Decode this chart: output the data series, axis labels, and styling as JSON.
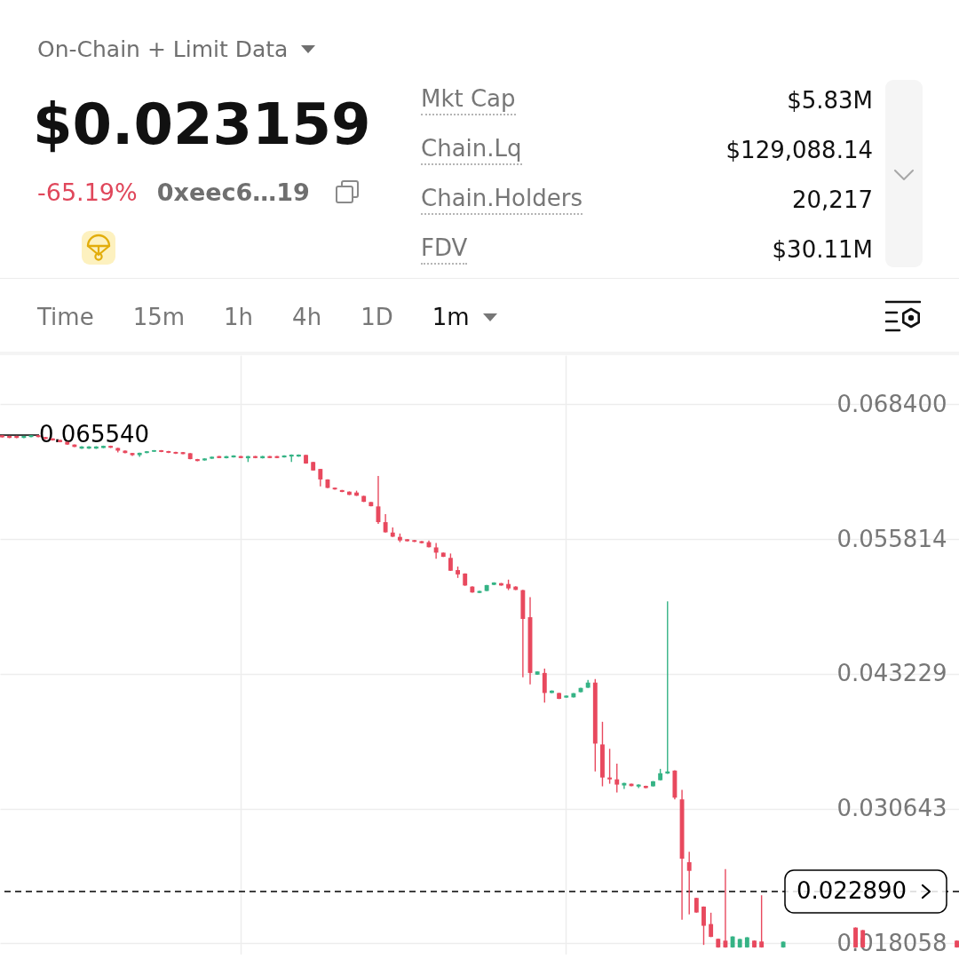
{
  "chart_data": [
    {
      "type": "other",
      "title": "On-Chain + Limit Data",
      "subtitle": "$0.023159",
      "annotations": [
        "-65.19%",
        "0xeec6…19",
        "Mkt Cap",
        "$5.83M",
        "Chain.Lq",
        "$129,088.14",
        "Chain.Holders",
        "20,217",
        "FDV",
        "$30.11M",
        "Time",
        "15m",
        "1h",
        "4h",
        "1D",
        "1m"
      ]
    },
    {
      "type": "candlestick",
      "categories": [
        null,
        null,
        null,
        null,
        null,
        null,
        null,
        null,
        null,
        null,
        null,
        null,
        null,
        null,
        null,
        null,
        null,
        null,
        null,
        null,
        null,
        null,
        null,
        null,
        null,
        null,
        null,
        null,
        null,
        null,
        null,
        null,
        null,
        null,
        null,
        null,
        null,
        null,
        null,
        null,
        null,
        null,
        null,
        null,
        null,
        null,
        null,
        null,
        null,
        null,
        null,
        null,
        null,
        null,
        null,
        null,
        null,
        null,
        null,
        null,
        null,
        null,
        null,
        null,
        null,
        null,
        null,
        null,
        null,
        null,
        null,
        null,
        null,
        null,
        null,
        null,
        null,
        null,
        null,
        null,
        null,
        null,
        null,
        null,
        null,
        null,
        null,
        null,
        null,
        null,
        null,
        null,
        null,
        null,
        null,
        null,
        null,
        null,
        null,
        null,
        null,
        null,
        null,
        null,
        null,
        null,
        null,
        null,
        null,
        null,
        null,
        null,
        null,
        null,
        null,
        null,
        null,
        null,
        null,
        null,
        null,
        null,
        null,
        null,
        null,
        null,
        null,
        null,
        null,
        null,
        null,
        null,
        null
      ],
      "ohlc": [
        [
          0.06552,
          0.06554,
          0.0653,
          0.06533
        ],
        [
          0.06545,
          0.06547,
          0.06525,
          0.06527
        ],
        [
          0.06545,
          0.06547,
          0.06525,
          0.06527
        ],
        [
          0.06527,
          0.06547,
          0.06525,
          0.06545
        ],
        [
          0.06535,
          0.06554,
          0.06533,
          0.06552
        ],
        [
          0.06552,
          0.06554,
          0.06533,
          0.06535
        ],
        [
          0.06535,
          0.06537,
          0.06515,
          0.06517
        ],
        [
          0.06522,
          0.06524,
          0.06502,
          0.06504
        ],
        [
          0.06508,
          0.0651,
          0.06486,
          0.06488
        ],
        [
          0.0649,
          0.06492,
          0.06463,
          0.06465
        ],
        [
          0.06465,
          0.06467,
          0.06441,
          0.06443
        ],
        [
          0.06427,
          0.06449,
          0.06425,
          0.06447
        ],
        [
          0.06427,
          0.06449,
          0.06425,
          0.06447
        ],
        [
          0.06427,
          0.06449,
          0.06425,
          0.06447
        ],
        [
          0.06433,
          0.06455,
          0.06431,
          0.06453
        ],
        [
          0.06453,
          0.06455,
          0.06433,
          0.06435
        ],
        [
          0.06433,
          0.06435,
          0.06392,
          0.06408
        ],
        [
          0.06408,
          0.0641,
          0.06384,
          0.06386
        ],
        [
          0.06386,
          0.06388,
          0.06359,
          0.06366
        ],
        [
          0.06366,
          0.0639,
          0.06351,
          0.06388
        ],
        [
          0.06386,
          0.06404,
          0.06384,
          0.06402
        ],
        [
          0.06398,
          0.06414,
          0.06396,
          0.06412
        ],
        [
          0.06412,
          0.06414,
          0.06394,
          0.06396
        ],
        [
          0.06404,
          0.06406,
          0.06386,
          0.06388
        ],
        [
          0.06396,
          0.06398,
          0.06378,
          0.0638
        ],
        [
          0.06394,
          0.06396,
          0.06374,
          0.06376
        ],
        [
          0.06384,
          0.06386,
          0.06327,
          0.06329
        ],
        [
          0.06329,
          0.06331,
          0.06309,
          0.06311
        ],
        [
          0.06317,
          0.06337,
          0.06315,
          0.06335
        ],
        [
          0.06333,
          0.06353,
          0.06331,
          0.06351
        ],
        [
          0.06357,
          0.06359,
          0.06337,
          0.06339
        ],
        [
          0.06337,
          0.06359,
          0.06335,
          0.06357
        ],
        [
          0.06345,
          0.06365,
          0.06343,
          0.06363
        ],
        [
          0.06357,
          0.06359,
          0.06337,
          0.06339
        ],
        [
          0.06337,
          0.06359,
          0.06302,
          0.06357
        ],
        [
          0.06357,
          0.06359,
          0.06337,
          0.06339
        ],
        [
          0.06337,
          0.06359,
          0.06335,
          0.06357
        ],
        [
          0.06357,
          0.06359,
          0.06337,
          0.06339
        ],
        [
          0.06357,
          0.06359,
          0.06337,
          0.06339
        ],
        [
          0.06345,
          0.06365,
          0.06343,
          0.06363
        ],
        [
          0.06353,
          0.06373,
          0.06302,
          0.06371
        ],
        [
          0.06353,
          0.06373,
          0.06351,
          0.06371
        ],
        [
          0.06368,
          0.0637,
          0.06286,
          0.06288
        ],
        [
          0.06302,
          0.06304,
          0.06221,
          0.06223
        ],
        [
          0.06237,
          0.06239,
          0.06074,
          0.06139
        ],
        [
          0.06139,
          0.06141,
          0.06058,
          0.0606
        ],
        [
          0.06062,
          0.06064,
          0.06044,
          0.06046
        ],
        [
          0.0604,
          0.06042,
          0.0602,
          0.06022
        ],
        [
          0.06025,
          0.06027,
          0.05993,
          0.05995
        ],
        [
          0.06017,
          0.06034,
          0.05985,
          0.05987
        ],
        [
          0.05985,
          0.05987,
          0.05928,
          0.0593
        ],
        [
          0.05928,
          0.0593,
          0.05887,
          0.05889
        ],
        [
          0.05887,
          0.06172,
          0.05724,
          0.0574
        ],
        [
          0.0574,
          0.05814,
          0.05643,
          0.05645
        ],
        [
          0.05643,
          0.05691,
          0.05602,
          0.05604
        ],
        [
          0.05602,
          0.05634,
          0.05553,
          0.05569
        ],
        [
          0.0558,
          0.05582,
          0.0556,
          0.05562
        ],
        [
          0.05572,
          0.05574,
          0.05554,
          0.05556
        ],
        [
          0.05562,
          0.05564,
          0.05542,
          0.05544
        ],
        [
          0.05553,
          0.05569,
          0.05504,
          0.05506
        ],
        [
          0.05504,
          0.05545,
          0.05398,
          0.05455
        ],
        [
          0.05455,
          0.05457,
          0.05414,
          0.05416
        ],
        [
          0.05406,
          0.05447,
          0.05284,
          0.05286
        ],
        [
          0.05292,
          0.05325,
          0.05219,
          0.05252
        ],
        [
          0.0526,
          0.05262,
          0.05146,
          0.05148
        ],
        [
          0.05138,
          0.0514,
          0.05081,
          0.05083
        ],
        [
          0.05079,
          0.05099,
          0.05077,
          0.05097
        ],
        [
          0.05097,
          0.05154,
          0.05095,
          0.05152
        ],
        [
          0.05154,
          0.05178,
          0.05152,
          0.05176
        ],
        [
          0.0517,
          0.05172,
          0.05146,
          0.05148
        ],
        [
          0.05162,
          0.05203,
          0.05105,
          0.05121
        ],
        [
          0.05138,
          0.0514,
          0.05105,
          0.05107
        ],
        [
          0.05105,
          0.05107,
          0.0429,
          0.04836
        ],
        [
          0.04852,
          0.0504,
          0.04225,
          0.04331
        ],
        [
          0.04315,
          0.04347,
          0.04313,
          0.04345
        ],
        [
          0.04331,
          0.04372,
          0.04054,
          0.04144
        ],
        [
          0.04144,
          0.04168,
          0.04142,
          0.04166
        ],
        [
          0.04144,
          0.04146,
          0.04087,
          0.04089
        ],
        [
          0.04101,
          0.04121,
          0.04099,
          0.04119
        ],
        [
          0.04103,
          0.04144,
          0.04101,
          0.04142
        ],
        [
          0.04152,
          0.04193,
          0.0415,
          0.04191
        ],
        [
          0.04193,
          0.04266,
          0.04191,
          0.04241
        ],
        [
          0.04241,
          0.04274,
          0.03411,
          0.03671
        ],
        [
          0.03663,
          0.03875,
          0.03272,
          0.03354
        ],
        [
          0.03354,
          0.03622,
          0.03296,
          0.03337
        ],
        [
          0.03337,
          0.03484,
          0.03215,
          0.03288
        ],
        [
          0.0328,
          0.03305,
          0.03248,
          0.03303
        ],
        [
          0.03296,
          0.03298,
          0.03272,
          0.03274
        ],
        [
          0.0327,
          0.0329,
          0.03256,
          0.03288
        ],
        [
          0.03276,
          0.03278,
          0.03254,
          0.03256
        ],
        [
          0.03272,
          0.03321,
          0.0327,
          0.03319
        ],
        [
          0.03329,
          0.03435,
          0.03327,
          0.03394
        ],
        [
          0.03391,
          0.04999,
          0.03389,
          0.03411
        ],
        [
          0.03419,
          0.03421,
          0.0315,
          0.03166
        ],
        [
          0.0315,
          0.03239,
          0.02026,
          0.02596
        ],
        [
          0.02563,
          0.02661,
          0.02075,
          0.02482
        ],
        [
          0.02229,
          0.02231,
          0.02091,
          0.02093
        ],
        [
          0.02148,
          0.0215,
          0.0179,
          0.01969
        ],
        [
          0.01985,
          0.02091,
          0.01863,
          0.01865
        ],
        [
          0.01847,
          0.01849,
          0.01765,
          0.01767
        ],
        [
          0.0183,
          0.02498,
          0.01765,
          0.01767
        ],
        [
          0.01767,
          0.01871,
          0.01765,
          0.01869
        ],
        [
          0.01767,
          0.01847,
          0.01765,
          0.01845
        ],
        [
          0.01767,
          0.01863,
          0.01765,
          0.01861
        ],
        [
          0.0183,
          0.01832,
          0.01765,
          0.01767
        ],
        [
          0.01822,
          0.02254,
          0.01765,
          0.01767
        ],
        null,
        null,
        [
          0.01767,
          0.01822,
          0.01765,
          0.0182
        ],
        null,
        null,
        null,
        null,
        null,
        null,
        null,
        null,
        null,
        [
          0.01952,
          0.01954,
          0.01765,
          0.01767
        ],
        [
          0.01928,
          0.0193,
          0.01765,
          0.01767
        ],
        null,
        null,
        null,
        null,
        null,
        null,
        null,
        null,
        null,
        null,
        null,
        null,
        [
          0.0183,
          0.01832,
          0.01765,
          0.01767
        ]
      ],
      "ylim": [
        0.017,
        0.073
      ],
      "yticks": [
        {
          "value": 0.0684,
          "label": "0.068400"
        },
        0.055814,
        0.043229,
        0.030643,
        0.018058
      ],
      "grid": true,
      "ref_lines": [
        {
          "axis": "y",
          "value": 0.02289,
          "label": "0.022890",
          "color": "#000000",
          "line_style": "dashed"
        }
      ],
      "annotations": [
        "0.065540"
      ]
    }
  ]
}
